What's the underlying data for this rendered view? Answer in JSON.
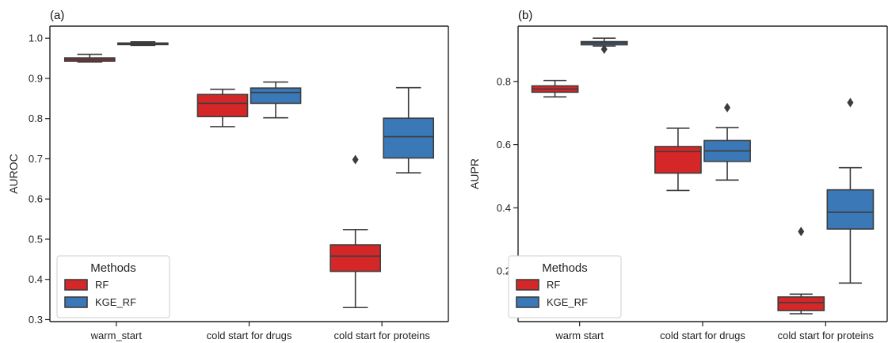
{
  "chart_data": [
    {
      "type": "box",
      "panel_label": "(a)",
      "ylabel": "AUROC",
      "xlabel": "",
      "ylim": [
        0.295,
        1.03
      ],
      "yticks": [
        0.3,
        0.4,
        0.5,
        0.6,
        0.7,
        0.8,
        0.9,
        1.0
      ],
      "ytick_labels": [
        "0.3",
        "0.4",
        "0.5",
        "0.6",
        "0.7",
        "0.8",
        "0.9",
        "1.0"
      ],
      "categories": [
        "warm_start",
        "cold start for drugs",
        "cold start for proteins"
      ],
      "legend": {
        "title": "Methods",
        "position": "lower-left"
      },
      "series": [
        {
          "name": "RF",
          "color": "#d62728",
          "boxes": [
            {
              "whislo": 0.941,
              "q1": 0.943,
              "med": 0.947,
              "q3": 0.951,
              "whishi": 0.96,
              "fliers": []
            },
            {
              "whislo": 0.78,
              "q1": 0.805,
              "med": 0.838,
              "q3": 0.86,
              "whishi": 0.873,
              "fliers": []
            },
            {
              "whislo": 0.33,
              "q1": 0.42,
              "med": 0.458,
              "q3": 0.486,
              "whishi": 0.524,
              "fliers": [
                0.698
              ]
            }
          ]
        },
        {
          "name": "KGE_RF",
          "color": "#3a78b8",
          "boxes": [
            {
              "whislo": 0.982,
              "q1": 0.984,
              "med": 0.986,
              "q3": 0.988,
              "whishi": 0.991,
              "fliers": []
            },
            {
              "whislo": 0.802,
              "q1": 0.838,
              "med": 0.865,
              "q3": 0.876,
              "whishi": 0.891,
              "fliers": []
            },
            {
              "whislo": 0.665,
              "q1": 0.702,
              "med": 0.755,
              "q3": 0.801,
              "whishi": 0.877,
              "fliers": []
            }
          ]
        }
      ]
    },
    {
      "type": "box",
      "panel_label": "(b)",
      "ylabel": "AUPR",
      "xlabel": "",
      "ylim": [
        0.04,
        0.975
      ],
      "yticks": [
        0.2,
        0.4,
        0.6,
        0.8
      ],
      "ytick_labels": [
        "0.2",
        "0.4",
        "0.6",
        "0.8"
      ],
      "categories": [
        "warm  start",
        "cold start for drugs",
        "cold start for proteins"
      ],
      "legend": {
        "title": "Methods",
        "position": "lower-left"
      },
      "series": [
        {
          "name": "RF",
          "color": "#d62728",
          "boxes": [
            {
              "whislo": 0.751,
              "q1": 0.766,
              "med": 0.776,
              "q3": 0.786,
              "whishi": 0.803,
              "fliers": []
            },
            {
              "whislo": 0.455,
              "q1": 0.51,
              "med": 0.578,
              "q3": 0.594,
              "whishi": 0.652,
              "fliers": []
            },
            {
              "whislo": 0.065,
              "q1": 0.075,
              "med": 0.1,
              "q3": 0.118,
              "whishi": 0.127,
              "fliers": [
                0.325
              ]
            }
          ]
        },
        {
          "name": "KGE_RF",
          "color": "#3a78b8",
          "boxes": [
            {
              "whislo": 0.912,
              "q1": 0.916,
              "med": 0.922,
              "q3": 0.926,
              "whishi": 0.937,
              "fliers": [
                0.902
              ]
            },
            {
              "whislo": 0.488,
              "q1": 0.547,
              "med": 0.58,
              "q3": 0.613,
              "whishi": 0.654,
              "fliers": [
                0.717
              ]
            },
            {
              "whislo": 0.162,
              "q1": 0.333,
              "med": 0.386,
              "q3": 0.457,
              "whishi": 0.527,
              "fliers": [
                0.733
              ]
            }
          ]
        }
      ]
    }
  ]
}
